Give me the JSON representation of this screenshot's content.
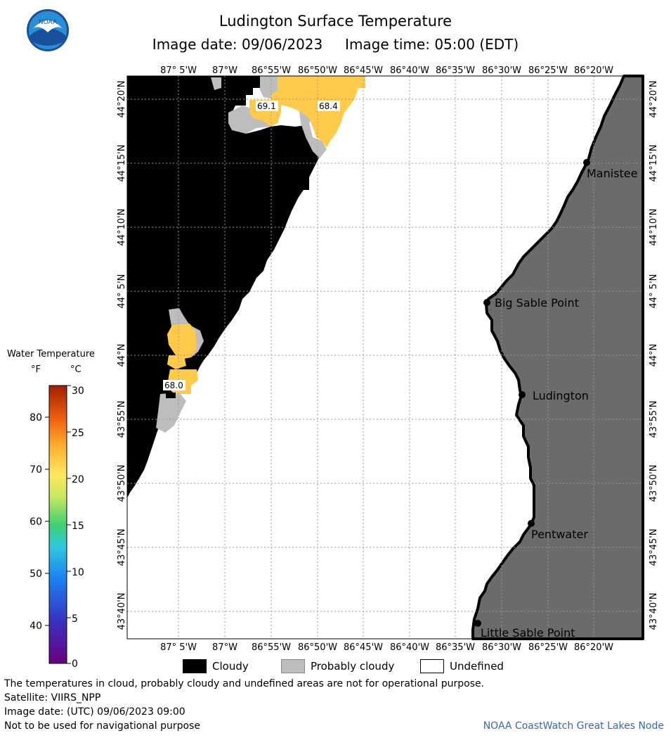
{
  "header": {
    "title": "Ludington Surface Temperature",
    "subtitle": "Image date: 09/06/2023     Image time: 05:00 (EDT)",
    "logo_text": "NOAA"
  },
  "map": {
    "lon_labels": [
      "87° 5'W",
      "87°W",
      "86°55'W",
      "86°50'W",
      "86°45'W",
      "86°40'W",
      "86°35'W",
      "86°30'W",
      "86°25'W",
      "86°20'W"
    ],
    "lat_labels": [
      "44°20'N",
      "44°15'N",
      "44°10'N",
      "44° 5'N",
      "44°N",
      "43°55'N",
      "43°50'N",
      "43°45'N",
      "43°40'N"
    ],
    "cities": [
      "Manistee",
      "Big Sable Point",
      "Ludington",
      "Pentwater",
      "Little Sable Point"
    ],
    "temperature_labels": [
      "69.1",
      "68.4",
      "68.0"
    ],
    "colors": {
      "cloudy": "#000000",
      "probably_cloudy": "#bdbdbd",
      "land": "#6b6b6b",
      "warm": "#ffc94a"
    }
  },
  "legend": {
    "title": "Water Temperature",
    "unit_f": "°F",
    "unit_c": "°C",
    "f_ticks": [
      "80",
      "70",
      "60",
      "50",
      "40"
    ],
    "c_ticks": [
      "30",
      "25",
      "20",
      "15",
      "10",
      "5",
      "0"
    ]
  },
  "key": {
    "cloudy": "Cloudy",
    "probably_cloudy": "Probably cloudy",
    "undefined": "Undefined"
  },
  "notes": {
    "disclaimer": "The temperatures in cloud, probably cloudy and undefined areas are not for operational purpose.",
    "satellite": "Satellite: VIIRS_NPP",
    "utc": "Image date: (UTC) 09/06/2023  09:00",
    "navigation": "Not to be used for navigational purpose",
    "credit": "NOAA CoastWatch Great Lakes Node"
  }
}
